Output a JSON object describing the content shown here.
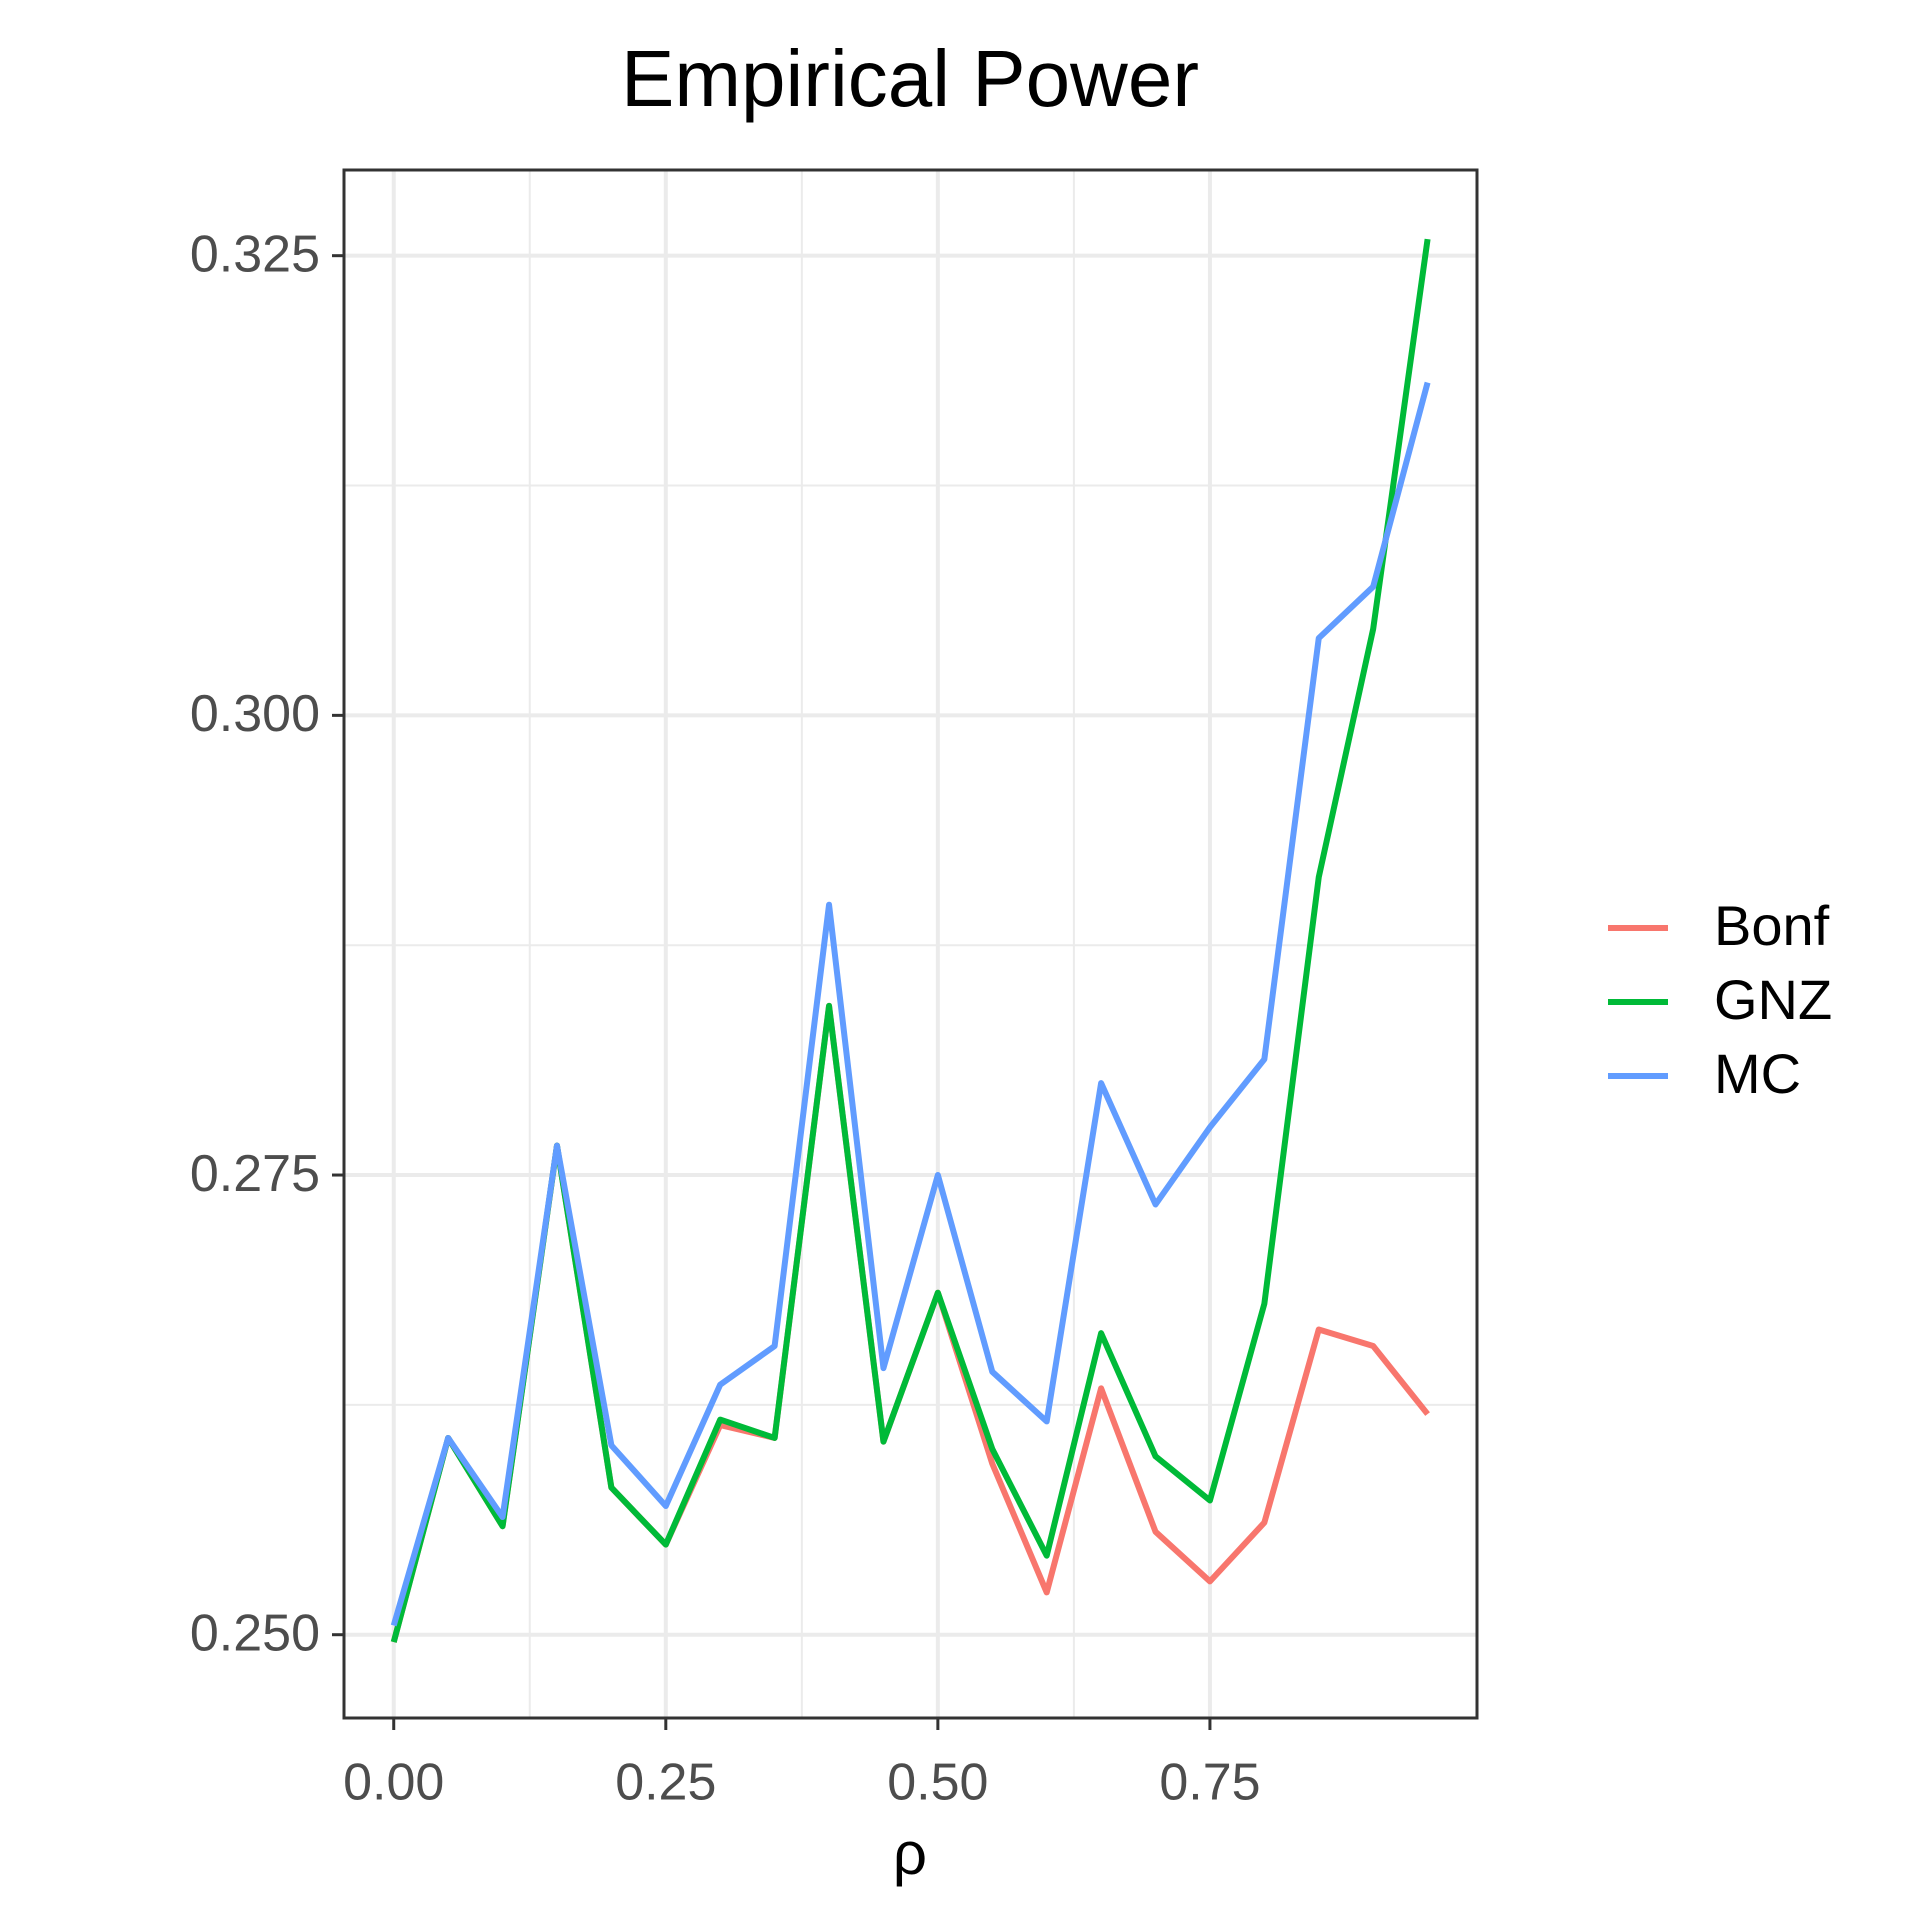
{
  "chart_data": {
    "type": "line",
    "title": "Empirical Power",
    "x_label": "ρ",
    "x": [
      0,
      0.05,
      0.1,
      0.15,
      0.2,
      0.25,
      0.3,
      0.35,
      0.4,
      0.45,
      0.5,
      0.55,
      0.6,
      0.65,
      0.7,
      0.75,
      0.8,
      0.85,
      0.9,
      0.95
    ],
    "series": [
      {
        "name": "Bonf",
        "color": "#f8766d",
        "values": [
          0.2496,
          0.2607,
          0.2559,
          0.2766,
          0.258,
          0.2549,
          0.2614,
          0.2607,
          0.2842,
          0.2605,
          0.2686,
          0.2593,
          0.2523,
          0.2634,
          0.2556,
          0.2529,
          0.2561,
          0.2666,
          0.2657,
          0.262
        ]
      },
      {
        "name": "GNZ",
        "color": "#00ba38",
        "values": [
          0.2496,
          0.2607,
          0.2559,
          0.2766,
          0.258,
          0.2549,
          0.2617,
          0.2607,
          0.2842,
          0.2605,
          0.2686,
          0.2601,
          0.2543,
          0.2664,
          0.2597,
          0.2573,
          0.268,
          0.2912,
          0.3047,
          0.3259
        ]
      },
      {
        "name": "MC",
        "color": "#619cff",
        "values": [
          0.2505,
          0.2607,
          0.2564,
          0.2766,
          0.2603,
          0.257,
          0.2636,
          0.2657,
          0.2897,
          0.2645,
          0.275,
          0.2643,
          0.2616,
          0.28,
          0.2734,
          0.2776,
          0.2813,
          0.3042,
          0.307,
          0.3181
        ]
      }
    ],
    "xlim": [
      -0.0457,
      0.9954
    ],
    "ylim": [
      0.24547,
      0.32966
    ],
    "xticks": [
      {
        "value": 0,
        "label": "0.00"
      },
      0.25,
      {
        "value": 0.5,
        "label": "0.50"
      },
      0.75
    ],
    "yticks": [
      {
        "value": 0.25,
        "label": "0.250"
      },
      0.275,
      {
        "value": 0.3,
        "label": "0.300"
      },
      0.325
    ],
    "grid": true,
    "legend": "right"
  }
}
